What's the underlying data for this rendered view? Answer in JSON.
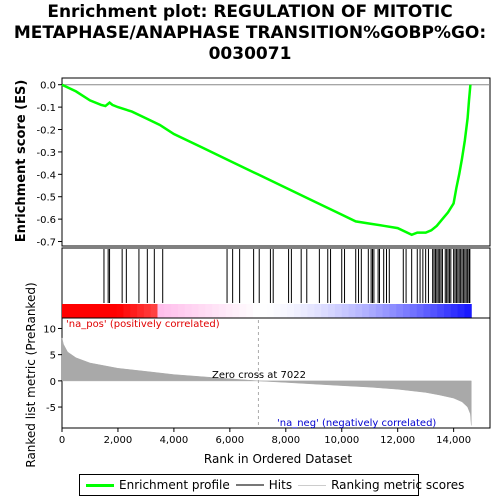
{
  "title_lines": [
    "Enrichment plot: REGULATION OF MITOTIC",
    "METAPHASE/ANAPHASE TRANSITION%GOBP%GO:",
    "0030071"
  ],
  "chart_data": {
    "type": "line",
    "title": "Enrichment plot: REGULATION OF MITOTIC METAPHASE/ANAPHASE TRANSITION%GOBP%GO:0030071",
    "es_panel": {
      "ylabel": "Enrichment score (ES)",
      "ylim": [
        -0.72,
        0.03
      ],
      "yticks": [
        0.0,
        -0.1,
        -0.2,
        -0.3,
        -0.4,
        -0.5,
        -0.6,
        -0.7
      ],
      "ytick_labels": [
        "0.0",
        "-0.1",
        "-0.2",
        "-0.3",
        "-0.4",
        "-0.5",
        "-0.6",
        "-0.7"
      ],
      "series": [
        {
          "name": "Enrichment profile",
          "color": "#00ff00",
          "x": [
            0,
            500,
            1000,
            1400,
            1550,
            1700,
            1800,
            2000,
            2500,
            3000,
            3500,
            4000,
            5000,
            6000,
            7000,
            8000,
            9000,
            10000,
            10500,
            11000,
            11500,
            12000,
            12500,
            12700,
            13000,
            13200,
            13400,
            13600,
            13800,
            14000,
            14100,
            14200,
            14300,
            14400,
            14500,
            14550,
            14600
          ],
          "y": [
            0.0,
            -0.03,
            -0.07,
            -0.09,
            -0.095,
            -0.08,
            -0.09,
            -0.1,
            -0.12,
            -0.15,
            -0.18,
            -0.22,
            -0.28,
            -0.34,
            -0.4,
            -0.46,
            -0.52,
            -0.58,
            -0.61,
            -0.62,
            -0.63,
            -0.64,
            -0.67,
            -0.66,
            -0.66,
            -0.65,
            -0.63,
            -0.6,
            -0.57,
            -0.53,
            -0.46,
            -0.4,
            -0.33,
            -0.25,
            -0.15,
            -0.07,
            0.0
          ]
        }
      ]
    },
    "hits_panel": {
      "legend_label": "Hits",
      "positions": [
        1500,
        1650,
        1700,
        2150,
        2300,
        2750,
        3050,
        3300,
        3600,
        5900,
        6100,
        6350,
        6850,
        7050,
        7450,
        7550,
        8100,
        8200,
        8550,
        8750,
        9200,
        9500,
        9600,
        10000,
        10100,
        10500,
        10600,
        10700,
        10950,
        11050,
        11100,
        11150,
        11300,
        11350,
        11500,
        11600,
        11700,
        12200,
        12300,
        12500,
        12700,
        12800,
        12900,
        13000,
        13100,
        13250,
        13300,
        13350,
        13400,
        13450,
        13500,
        13550,
        13600,
        13700,
        13750,
        13800,
        13850,
        13900,
        14000,
        14050,
        14100,
        14150,
        14200,
        14250,
        14300,
        14350,
        14400,
        14450,
        14500,
        14550,
        14580
      ]
    },
    "metric_panel": {
      "ylabel": "Ranked list metric (PreRanked)",
      "xlabel": "Rank in Ordered Dataset",
      "legend_label": "Ranking metric scores",
      "ylim": [
        -9,
        12
      ],
      "yticks": [
        10,
        5,
        0,
        -5
      ],
      "ytick_labels": [
        "10",
        "5",
        "0",
        "-5"
      ],
      "xlim": [
        0,
        15300
      ],
      "xticks": [
        0,
        2000,
        4000,
        6000,
        8000,
        10000,
        12000,
        14000
      ],
      "xtick_labels": [
        "0",
        "2,000",
        "4,000",
        "6,000",
        "8,000",
        "10,000",
        "12,000",
        "14,000"
      ],
      "zero_cross": 7022,
      "zero_cross_label": "Zero cross at 7022",
      "pos_label": "'na_pos' (positively correlated)",
      "neg_label": "'na_neg' (negatively correlated)",
      "pos_label_color": "#e00000",
      "neg_label_color": "#0000d0",
      "n_total": 14630,
      "metric_x": [
        0,
        50,
        200,
        500,
        1000,
        2000,
        3000,
        4000,
        5000,
        6000,
        7022,
        8000,
        9000,
        10000,
        11000,
        12000,
        13000,
        13500,
        14000,
        14300,
        14500,
        14600,
        14630
      ],
      "metric_y": [
        8.2,
        7.0,
        5.5,
        4.4,
        3.4,
        2.4,
        1.8,
        1.2,
        0.8,
        0.4,
        0.0,
        -0.3,
        -0.6,
        -0.9,
        -1.2,
        -1.6,
        -2.2,
        -2.7,
        -3.3,
        -4.0,
        -5.0,
        -6.3,
        -8.5
      ]
    },
    "legend": {
      "entries": [
        "Enrichment profile",
        "Hits",
        "Ranking metric scores"
      ],
      "colors": [
        "#00ff00",
        "#777777",
        "#cccccc"
      ]
    },
    "grid": false
  }
}
